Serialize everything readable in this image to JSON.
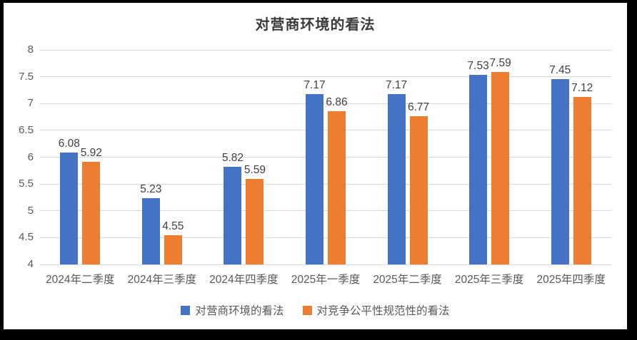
{
  "frame": {
    "border_color": "#000000",
    "background_color": "#ffffff"
  },
  "chart_data": {
    "type": "bar",
    "title": "对营商环境的看法",
    "categories": [
      "2024年二季度",
      "2024年三季度",
      "2024年四季度",
      "2025年一季度",
      "2025年二季度",
      "2025年三季度",
      "2025年四季度"
    ],
    "series": [
      {
        "name": "对营商环境的看法",
        "color": "#4472C4",
        "values": [
          6.08,
          5.23,
          5.82,
          7.17,
          7.17,
          7.53,
          7.45
        ]
      },
      {
        "name": "对竞争公平性规范性的看法",
        "color": "#ED7D31",
        "values": [
          5.92,
          4.55,
          5.59,
          6.86,
          6.77,
          7.59,
          7.12
        ]
      }
    ],
    "xlabel": "",
    "ylabel": "",
    "ylim": [
      4,
      8
    ],
    "yticks": [
      4,
      4.5,
      5,
      5.5,
      6,
      6.5,
      7,
      7.5,
      8
    ],
    "grid": true,
    "data_labels": true,
    "legend_position": "bottom"
  },
  "style": {
    "gridline_color": "#d9d9d9",
    "tick_label_color": "#595959",
    "data_label_color": "#404040",
    "title_color": "#3a3a3a"
  }
}
